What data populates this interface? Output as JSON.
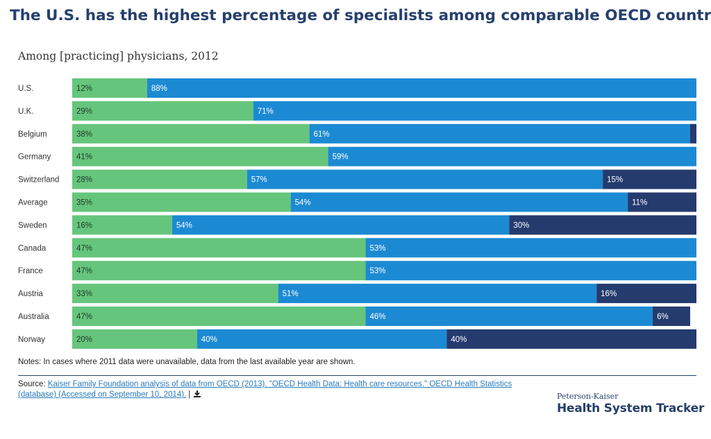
{
  "title": "The U.S. has the highest percentage of specialists among comparable OECD countries",
  "subtitle": "Among [practicing] physicians, 2012",
  "notes": "Notes: In cases where 2011 data were unavailable, data from the last available year are shown.",
  "source": {
    "prefix": "Source: ",
    "link_text": "Kaiser Family Foundation analysis of data from OECD (2013). \"OECD Health Data: Health care resources.\" OECD Health Statistics (database) (Accessed on September 10, 2014).",
    "separator": "|",
    "icon": "download-icon"
  },
  "brand": {
    "top": "Peterson-Kaiser",
    "main": "Health System Tracker"
  },
  "colors": {
    "segment1": "#66c57c",
    "segment2": "#1c8ad3",
    "segment3": "#253b6e",
    "title": "#253f6e"
  },
  "chart_data": {
    "type": "bar",
    "orientation": "horizontal",
    "stacked": true,
    "categories": [
      "U.S.",
      "U.K.",
      "Belgium",
      "Germany",
      "Switzerland",
      "Average",
      "Sweden",
      "Canada",
      "France",
      "Austria",
      "Australia",
      "Norway"
    ],
    "series": [
      {
        "values": [
          12,
          29,
          38,
          41,
          28,
          35,
          16,
          47,
          47,
          33,
          47,
          20
        ],
        "labels": [
          "12%",
          "29%",
          "38%",
          "41%",
          "28%",
          "35%",
          "16%",
          "47%",
          "47%",
          "33%",
          "47%",
          "20%"
        ],
        "color": "#66c57c"
      },
      {
        "values": [
          88,
          71,
          61,
          59,
          57,
          54,
          54,
          53,
          53,
          51,
          46,
          40
        ],
        "labels": [
          "88%",
          "71%",
          "61%",
          "59%",
          "57%",
          "54%",
          "54%",
          "53%",
          "53%",
          "51%",
          "46%",
          "40%"
        ],
        "color": "#1c8ad3"
      },
      {
        "values": [
          0,
          0,
          1,
          0,
          15,
          11,
          30,
          0,
          0,
          16,
          6,
          40
        ],
        "labels": [
          "",
          "",
          "",
          "",
          "15%",
          "11%",
          "30%",
          "",
          "",
          "16%",
          "6%",
          "40%"
        ],
        "color": "#253b6e"
      }
    ],
    "xlim": [
      0,
      100
    ],
    "grid": false,
    "legend": "none"
  }
}
